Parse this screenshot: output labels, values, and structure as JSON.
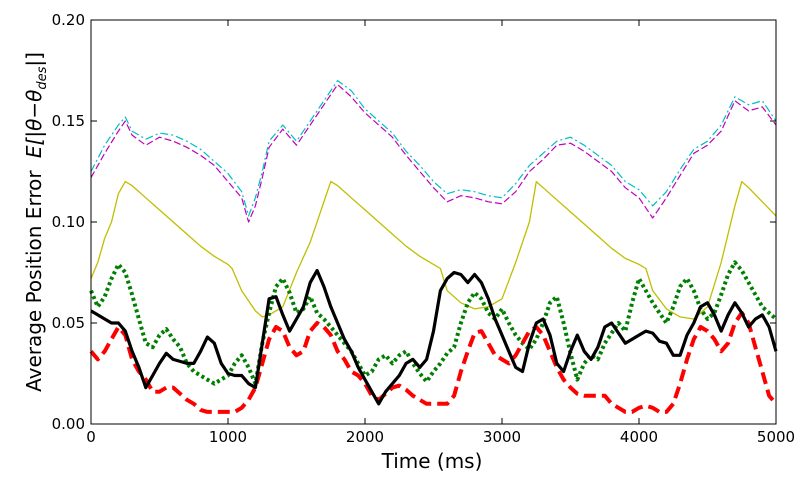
{
  "chart_data": {
    "type": "line",
    "title": "",
    "xlabel": "Time (ms)",
    "ylabel": "Average Position Error",
    "ylabel_math": "E[|θ−θ",
    "ylabel_math_sub": "des",
    "ylabel_math_close": "|]",
    "xlim": [
      0,
      5000
    ],
    "ylim": [
      0,
      0.2
    ],
    "x_ticks": [
      0,
      1000,
      2000,
      3000,
      4000,
      5000
    ],
    "x_tick_labels": [
      "0",
      "1000",
      "2000",
      "3000",
      "4000",
      "5000"
    ],
    "y_ticks": [
      0,
      0.05,
      0.1,
      0.15,
      0.2
    ],
    "y_tick_labels": [
      "0.00",
      "0.05",
      "0.10",
      "0.15",
      "0.20"
    ],
    "grid": false,
    "legend": "none",
    "series": [
      {
        "name": "cyan dash-dot",
        "color": "#00bfbf",
        "style": "dashdot",
        "width": 1.2,
        "x": [
          0,
          100,
          200,
          250,
          300,
          400,
          500,
          600,
          700,
          800,
          900,
          1000,
          1100,
          1150,
          1200,
          1250,
          1300,
          1400,
          1500,
          1600,
          1700,
          1800,
          1900,
          2000,
          2100,
          2200,
          2300,
          2400,
          2500,
          2600,
          2700,
          2800,
          2900,
          3000,
          3100,
          3200,
          3300,
          3400,
          3500,
          3600,
          3700,
          3800,
          3900,
          4000,
          4100,
          4200,
          4300,
          4400,
          4500,
          4600,
          4700,
          4800,
          4900,
          5000
        ],
        "y": [
          0.125,
          0.138,
          0.148,
          0.152,
          0.145,
          0.141,
          0.144,
          0.143,
          0.14,
          0.136,
          0.13,
          0.124,
          0.115,
          0.103,
          0.112,
          0.125,
          0.14,
          0.148,
          0.14,
          0.15,
          0.16,
          0.17,
          0.165,
          0.156,
          0.15,
          0.144,
          0.135,
          0.128,
          0.12,
          0.114,
          0.116,
          0.115,
          0.113,
          0.112,
          0.119,
          0.128,
          0.134,
          0.14,
          0.142,
          0.138,
          0.133,
          0.128,
          0.12,
          0.116,
          0.108,
          0.115,
          0.126,
          0.136,
          0.14,
          0.148,
          0.162,
          0.158,
          0.16,
          0.15
        ]
      },
      {
        "name": "magenta dashed",
        "color": "#bf00bf",
        "style": "dashed",
        "width": 1.2,
        "x": [
          0,
          100,
          200,
          250,
          300,
          400,
          500,
          600,
          700,
          800,
          900,
          1000,
          1100,
          1150,
          1200,
          1250,
          1300,
          1400,
          1500,
          1600,
          1700,
          1800,
          1900,
          2000,
          2100,
          2200,
          2300,
          2400,
          2500,
          2600,
          2700,
          2800,
          2900,
          3000,
          3100,
          3200,
          3300,
          3400,
          3500,
          3600,
          3700,
          3800,
          3900,
          4000,
          4100,
          4200,
          4300,
          4400,
          4500,
          4600,
          4700,
          4800,
          4900,
          5000
        ],
        "y": [
          0.122,
          0.134,
          0.145,
          0.15,
          0.143,
          0.138,
          0.142,
          0.14,
          0.137,
          0.133,
          0.128,
          0.12,
          0.112,
          0.1,
          0.108,
          0.122,
          0.137,
          0.146,
          0.138,
          0.148,
          0.158,
          0.168,
          0.162,
          0.154,
          0.148,
          0.142,
          0.133,
          0.125,
          0.117,
          0.11,
          0.113,
          0.112,
          0.11,
          0.109,
          0.115,
          0.125,
          0.131,
          0.138,
          0.139,
          0.135,
          0.13,
          0.125,
          0.117,
          0.112,
          0.102,
          0.112,
          0.123,
          0.134,
          0.138,
          0.145,
          0.16,
          0.155,
          0.157,
          0.148
        ]
      },
      {
        "name": "yellow solid",
        "color": "#bfbf00",
        "style": "solid",
        "width": 1.3,
        "x": [
          0,
          50,
          100,
          150,
          200,
          250,
          300,
          400,
          500,
          600,
          700,
          800,
          900,
          1000,
          1030,
          1100,
          1200,
          1250,
          1300,
          1400,
          1500,
          1600,
          1700,
          1750,
          1800,
          1900,
          2000,
          2100,
          2200,
          2300,
          2400,
          2500,
          2550,
          2600,
          2700,
          2800,
          2900,
          3000,
          3100,
          3200,
          3250,
          3300,
          3400,
          3500,
          3600,
          3700,
          3800,
          3900,
          4000,
          4050,
          4100,
          4200,
          4300,
          4400,
          4500,
          4600,
          4700,
          4750,
          4800,
          4900,
          5000
        ],
        "y": [
          0.072,
          0.08,
          0.092,
          0.1,
          0.114,
          0.12,
          0.118,
          0.112,
          0.106,
          0.1,
          0.094,
          0.088,
          0.083,
          0.079,
          0.077,
          0.066,
          0.056,
          0.053,
          0.054,
          0.058,
          0.075,
          0.09,
          0.11,
          0.12,
          0.118,
          0.112,
          0.106,
          0.1,
          0.094,
          0.088,
          0.083,
          0.079,
          0.077,
          0.066,
          0.06,
          0.057,
          0.058,
          0.062,
          0.08,
          0.1,
          0.12,
          0.117,
          0.111,
          0.105,
          0.099,
          0.093,
          0.087,
          0.082,
          0.079,
          0.077,
          0.066,
          0.057,
          0.053,
          0.052,
          0.058,
          0.08,
          0.108,
          0.12,
          0.117,
          0.11,
          0.103
        ]
      },
      {
        "name": "green dotted",
        "color": "#007f00",
        "style": "dotted",
        "width": 4,
        "x": [
          0,
          50,
          100,
          150,
          200,
          250,
          300,
          350,
          400,
          450,
          500,
          550,
          600,
          650,
          700,
          750,
          800,
          850,
          900,
          1000,
          1050,
          1100,
          1150,
          1200,
          1250,
          1300,
          1350,
          1400,
          1450,
          1500,
          1550,
          1600,
          1650,
          1700,
          1750,
          1800,
          1850,
          1900,
          1950,
          2000,
          2050,
          2100,
          2150,
          2200,
          2250,
          2300,
          2350,
          2400,
          2450,
          2500,
          2550,
          2600,
          2650,
          2700,
          2750,
          2800,
          2850,
          2900,
          2950,
          3000,
          3050,
          3100,
          3150,
          3200,
          3250,
          3300,
          3350,
          3400,
          3450,
          3500,
          3550,
          3600,
          3650,
          3700,
          3750,
          3800,
          3850,
          3900,
          3950,
          4000,
          4050,
          4100,
          4150,
          4200,
          4250,
          4300,
          4350,
          4400,
          4450,
          4500,
          4550,
          4600,
          4650,
          4700,
          4750,
          4800,
          4850,
          4900,
          4950,
          5000
        ],
        "y": [
          0.066,
          0.058,
          0.063,
          0.072,
          0.079,
          0.075,
          0.064,
          0.052,
          0.04,
          0.038,
          0.044,
          0.047,
          0.042,
          0.038,
          0.03,
          0.026,
          0.024,
          0.022,
          0.02,
          0.024,
          0.03,
          0.034,
          0.028,
          0.02,
          0.04,
          0.055,
          0.068,
          0.072,
          0.065,
          0.055,
          0.057,
          0.063,
          0.055,
          0.052,
          0.048,
          0.044,
          0.04,
          0.036,
          0.03,
          0.024,
          0.026,
          0.032,
          0.034,
          0.03,
          0.034,
          0.036,
          0.03,
          0.025,
          0.021,
          0.026,
          0.03,
          0.035,
          0.038,
          0.05,
          0.06,
          0.065,
          0.062,
          0.055,
          0.052,
          0.057,
          0.05,
          0.044,
          0.04,
          0.037,
          0.042,
          0.05,
          0.06,
          0.063,
          0.05,
          0.035,
          0.022,
          0.03,
          0.034,
          0.032,
          0.04,
          0.045,
          0.05,
          0.046,
          0.06,
          0.072,
          0.066,
          0.06,
          0.055,
          0.05,
          0.058,
          0.068,
          0.072,
          0.066,
          0.057,
          0.052,
          0.055,
          0.064,
          0.074,
          0.08,
          0.076,
          0.07,
          0.064,
          0.058,
          0.055,
          0.052
        ]
      },
      {
        "name": "red dashed",
        "color": "#ff0000",
        "style": "dashed",
        "width": 4,
        "x": [
          0,
          50,
          100,
          150,
          200,
          250,
          300,
          350,
          400,
          450,
          500,
          550,
          600,
          650,
          700,
          750,
          800,
          850,
          900,
          950,
          1000,
          1050,
          1100,
          1150,
          1200,
          1250,
          1300,
          1350,
          1400,
          1450,
          1500,
          1550,
          1600,
          1650,
          1700,
          1750,
          1800,
          1850,
          1900,
          1950,
          2000,
          2050,
          2100,
          2150,
          2200,
          2250,
          2300,
          2350,
          2400,
          2450,
          2500,
          2550,
          2600,
          2650,
          2700,
          2750,
          2800,
          2850,
          2900,
          2950,
          3000,
          3050,
          3100,
          3150,
          3200,
          3250,
          3300,
          3350,
          3400,
          3450,
          3500,
          3550,
          3600,
          3650,
          3700,
          3750,
          3800,
          3850,
          3900,
          3950,
          4000,
          4050,
          4100,
          4150,
          4200,
          4250,
          4300,
          4350,
          4400,
          4450,
          4500,
          4550,
          4600,
          4650,
          4700,
          4750,
          4800,
          4850,
          4900,
          4950,
          5000
        ],
        "y": [
          0.036,
          0.032,
          0.036,
          0.042,
          0.048,
          0.044,
          0.032,
          0.026,
          0.022,
          0.016,
          0.016,
          0.018,
          0.018,
          0.015,
          0.012,
          0.01,
          0.007,
          0.006,
          0.006,
          0.006,
          0.006,
          0.006,
          0.008,
          0.012,
          0.018,
          0.03,
          0.042,
          0.048,
          0.046,
          0.038,
          0.034,
          0.036,
          0.046,
          0.05,
          0.048,
          0.044,
          0.036,
          0.032,
          0.026,
          0.024,
          0.02,
          0.014,
          0.012,
          0.015,
          0.018,
          0.019,
          0.017,
          0.014,
          0.012,
          0.01,
          0.01,
          0.01,
          0.01,
          0.014,
          0.026,
          0.036,
          0.045,
          0.046,
          0.04,
          0.034,
          0.032,
          0.03,
          0.034,
          0.04,
          0.046,
          0.048,
          0.044,
          0.036,
          0.028,
          0.022,
          0.018,
          0.015,
          0.014,
          0.014,
          0.014,
          0.014,
          0.01,
          0.008,
          0.006,
          0.006,
          0.008,
          0.009,
          0.008,
          0.006,
          0.006,
          0.01,
          0.02,
          0.032,
          0.042,
          0.048,
          0.046,
          0.042,
          0.036,
          0.04,
          0.05,
          0.055,
          0.05,
          0.038,
          0.026,
          0.014,
          0.01
        ]
      },
      {
        "name": "black solid",
        "color": "#000000",
        "style": "solid",
        "width": 3.2,
        "x": [
          0,
          50,
          100,
          150,
          200,
          250,
          300,
          350,
          400,
          450,
          500,
          550,
          600,
          650,
          700,
          750,
          800,
          850,
          900,
          950,
          1000,
          1050,
          1100,
          1150,
          1200,
          1250,
          1300,
          1350,
          1400,
          1450,
          1500,
          1550,
          1600,
          1650,
          1700,
          1750,
          1800,
          1850,
          1900,
          1950,
          2000,
          2050,
          2100,
          2150,
          2200,
          2250,
          2300,
          2350,
          2400,
          2450,
          2500,
          2550,
          2600,
          2650,
          2700,
          2750,
          2800,
          2850,
          2900,
          2950,
          3000,
          3050,
          3100,
          3150,
          3200,
          3250,
          3300,
          3350,
          3400,
          3450,
          3500,
          3550,
          3600,
          3650,
          3700,
          3750,
          3800,
          3850,
          3900,
          3950,
          4000,
          4050,
          4100,
          4150,
          4200,
          4250,
          4300,
          4350,
          4400,
          4450,
          4500,
          4550,
          4600,
          4650,
          4700,
          4750,
          4800,
          4850,
          4900,
          4950,
          5000
        ],
        "y": [
          0.056,
          0.054,
          0.052,
          0.05,
          0.05,
          0.046,
          0.036,
          0.028,
          0.018,
          0.024,
          0.03,
          0.035,
          0.032,
          0.031,
          0.03,
          0.03,
          0.036,
          0.043,
          0.04,
          0.03,
          0.025,
          0.024,
          0.024,
          0.02,
          0.018,
          0.04,
          0.062,
          0.063,
          0.054,
          0.046,
          0.052,
          0.058,
          0.07,
          0.076,
          0.068,
          0.058,
          0.05,
          0.042,
          0.036,
          0.028,
          0.022,
          0.016,
          0.01,
          0.016,
          0.02,
          0.024,
          0.03,
          0.032,
          0.028,
          0.032,
          0.046,
          0.066,
          0.072,
          0.075,
          0.074,
          0.07,
          0.074,
          0.07,
          0.062,
          0.052,
          0.044,
          0.036,
          0.028,
          0.026,
          0.04,
          0.05,
          0.052,
          0.044,
          0.03,
          0.026,
          0.036,
          0.044,
          0.036,
          0.032,
          0.038,
          0.048,
          0.05,
          0.045,
          0.04,
          0.042,
          0.044,
          0.046,
          0.045,
          0.041,
          0.04,
          0.034,
          0.034,
          0.044,
          0.05,
          0.058,
          0.06,
          0.054,
          0.046,
          0.054,
          0.06,
          0.055,
          0.048,
          0.052,
          0.054,
          0.048,
          0.036
        ]
      }
    ]
  }
}
